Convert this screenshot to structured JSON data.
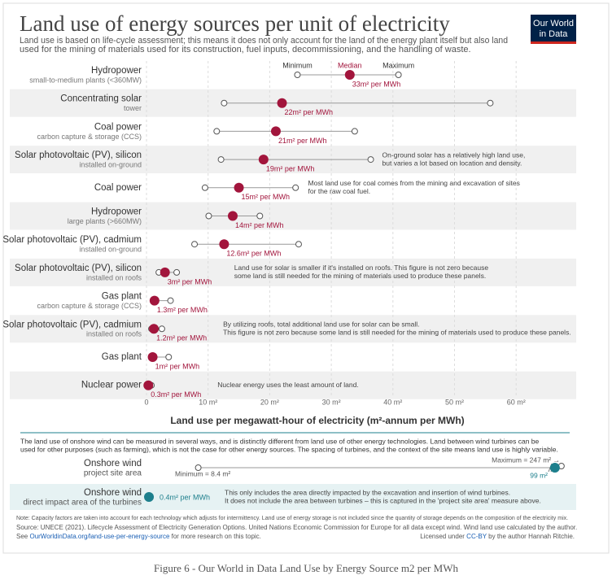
{
  "header": {
    "title": "Land use of energy sources per unit of electricity",
    "subtitle": [
      "Land use is based on life-cycle assessment; this means it does not only account for the land of the energy plant itself but also land",
      "used for the mining of materials used for its construction, fuel inputs, decommissioning, and the handling of waste."
    ],
    "logo": [
      "Our World",
      "in Data"
    ]
  },
  "chart_data": {
    "type": "dot-range",
    "xlabel": "Land use per megawatt-hour of electricity (m²-annum per MWh)",
    "xlim": [
      0,
      70
    ],
    "xticks": [
      0,
      {
        "value": 10,
        "label": "10 m²"
      },
      {
        "value": 20,
        "label": "20 m²"
      },
      {
        "value": 30,
        "label": "30 m²"
      },
      {
        "value": 40,
        "label": "40 m²"
      },
      {
        "value": 50,
        "label": "50 m²"
      },
      {
        "value": 60,
        "label": "60 m²"
      }
    ],
    "grid": true,
    "categories": [
      "Hydropower",
      "Concentrating solar",
      "Coal power",
      "Solar photovoltaic (PV), silicon",
      "Coal power",
      "Hydropower",
      "Solar photovoltaic (PV), cadmium",
      "Solar photovoltaic (PV), silicon",
      "Gas plant",
      "Solar photovoltaic (PV), cadmium",
      "Gas plant",
      "Nuclear power"
    ],
    "sublabels": [
      "small-to-medium plants (<360MW)",
      "tower",
      "carbon capture & storage (CCS)",
      "installed on-ground",
      null,
      "large plants (>660MW)",
      "installed on-ground",
      "installed on roofs",
      "carbon capture & storage (CCS)",
      "installed on roofs",
      null,
      null
    ],
    "series": [
      {
        "name": "Minimum",
        "color": "#ffffff",
        "values": [
          24.5,
          12.6,
          11.4,
          12.1,
          9.5,
          10.1,
          7.8,
          2,
          1.1,
          0.8,
          0.9,
          0.1
        ]
      },
      {
        "name": "Median",
        "color": "#a2153c",
        "values": [
          33,
          22,
          21,
          19,
          15,
          14,
          12.6,
          3,
          1.3,
          1.2,
          1,
          0.3
        ],
        "value_labels": [
          "33m² per MWh",
          "22m² per MWh",
          "21m² per MWh",
          "19m² per MWh",
          "15m² per MWh",
          "14m² per MWh",
          "12.6m² per MWh",
          "3m² per MWh",
          "1.3m² per MWh",
          "1.2m² per MWh",
          "1m² per MWh",
          "0.3m² per MWh"
        ]
      },
      {
        "name": "Maximum",
        "color": "#ffffff",
        "values": [
          40.9,
          55.8,
          33.8,
          36.4,
          24.2,
          18.4,
          24.7,
          4.9,
          3.9,
          2.5,
          3.6,
          0.8
        ]
      }
    ],
    "annotations": [
      null,
      null,
      null,
      [
        "On-ground solar has a relatively high land use,",
        "but varies a lot based on location and density."
      ],
      [
        "Most land use for coal comes from the mining and excavation of sites",
        "for the raw coal fuel."
      ],
      null,
      null,
      [
        "Land use for solar is smaller if it's installed on roofs. This figure is not zero because",
        "some land is still needed for the mining of materials used to produce these panels."
      ],
      null,
      [
        "By utilizing roofs, total additional land use for solar can be small.",
        "This figure is not zero because some land is still needed for the mining of materials used to produce these panels."
      ],
      null,
      [
        "Nuclear energy uses the least amount of land."
      ]
    ]
  },
  "wind": {
    "color": "#1d7f8c",
    "note": [
      "The land use of onshore wind can be measured in several ways, and is distinctly different from land use of other energy technologies. Land between wind turbines can be",
      "used for other purposes (such as farming), which is not the case for other energy sources. The spacing of turbines, and the context of the site means land use is highly variable."
    ],
    "project": {
      "label": "Onshore wind",
      "sublabel": "project site area",
      "min": 8.4,
      "min_label": "Minimum = 8.4 m²",
      "median": 99,
      "median_label": "99 m²",
      "max": 247,
      "max_label": "Maximum = 247 m² →"
    },
    "direct": {
      "label": "Onshore wind",
      "sublabel": "direct impact area of the turbines",
      "value": 0.4,
      "value_label": "0.4m² per MWh",
      "annotation": [
        "This only includes the area directly impacted by the excavation and insertion of wind turbines.",
        "It does not include the area between turbines – this is captured in the 'project site area' measure above."
      ]
    }
  },
  "footer": {
    "note": "Note: Capacity factors are taken into account for each technology which adjusts for intermittency. Land use of energy storage is not included since the quantity of storage depends on the composition of the electricity mix.",
    "source": "Source: UNECE (2021). Lifecycle Assessment of Electricity Generation Options. United Nations Economic Commission for Europe for all data except wind. Wind land use calculated by the author.",
    "see": [
      "See ",
      "OurWorldinData.org/land-use-per-energy-source",
      " for more research on this topic."
    ],
    "license": [
      "Licensed under ",
      "CC-BY",
      " by the author Hannah Ritchie."
    ]
  },
  "caption": "Figure 6 - Our World in Data Land Use by Energy Source m2 per MWh"
}
